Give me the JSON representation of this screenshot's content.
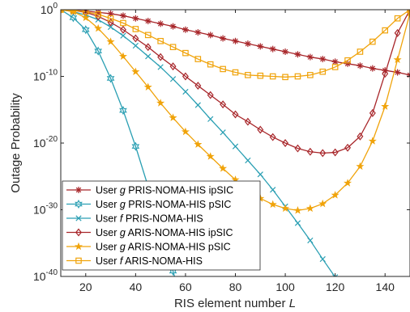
{
  "chart_data": {
    "type": "line",
    "title": "",
    "xlabel": "RIS element number",
    "xlabel_var": "L",
    "ylabel": "Outage Probability",
    "xlim": [
      10,
      150
    ],
    "ylim_exponent": [
      -40,
      0
    ],
    "yscale": "log",
    "x_ticks": [
      "20",
      "40",
      "60",
      "80",
      "100",
      "120",
      "140"
    ],
    "y_ticks": [
      {
        "base": "10",
        "exp": "0",
        "value": 0
      },
      {
        "base": "10",
        "exp": "-10",
        "value": -10
      },
      {
        "base": "10",
        "exp": "-20",
        "value": -20
      },
      {
        "base": "10",
        "exp": "-30",
        "value": -30
      },
      {
        "base": "10",
        "exp": "-40",
        "value": -40
      }
    ],
    "grid": false,
    "legend_position": "bottom-left",
    "series": [
      {
        "name": "User g PRIS-NOMA-HIS ipSIC",
        "label_parts": [
          "User ",
          "g",
          " PRIS-NOMA-HIS ipSIC"
        ],
        "color": "#a8262a",
        "marker": "asterisk",
        "x": [
          10,
          15,
          20,
          25,
          30,
          35,
          40,
          45,
          50,
          55,
          60,
          65,
          70,
          75,
          80,
          85,
          90,
          95,
          100,
          105,
          110,
          115,
          120,
          125,
          130,
          135,
          140,
          145,
          150
        ],
        "log10_y": [
          0,
          -0.1,
          -0.2,
          -0.4,
          -0.6,
          -0.9,
          -1.3,
          -1.7,
          -2.1,
          -2.5,
          -3.0,
          -3.4,
          -3.8,
          -4.3,
          -4.7,
          -5.1,
          -5.5,
          -5.9,
          -6.3,
          -6.7,
          -7.1,
          -7.4,
          -7.8,
          -8.1,
          -8.4,
          -8.8,
          -9.1,
          -9.4,
          -9.8
        ]
      },
      {
        "name": "User g PRIS-NOMA-HIS pSIC",
        "label_parts": [
          "User ",
          "g",
          " PRIS-NOMA-HIS pSIC"
        ],
        "color": "#2a9fb3",
        "marker": "hexagram",
        "x": [
          10,
          15,
          20,
          25,
          30,
          35,
          40,
          45,
          50,
          55,
          60
        ],
        "log10_y": [
          0,
          -1.2,
          -3.0,
          -6.2,
          -10.3,
          -15.1,
          -20.5,
          -26.5,
          -32.8,
          -39.2,
          -46
        ]
      },
      {
        "name": "User f PRIS-NOMA-HIS",
        "label_parts": [
          "User ",
          "f",
          " PRIS-NOMA-HIS"
        ],
        "color": "#2a9fb3",
        "marker": "x",
        "x": [
          10,
          15,
          20,
          25,
          30,
          35,
          40,
          45,
          50,
          55,
          60,
          65,
          70,
          75,
          80,
          85,
          90,
          95,
          100,
          105,
          110,
          115,
          120,
          125
        ],
        "log10_y": [
          0,
          -0.3,
          -0.8,
          -1.5,
          -2.6,
          -3.9,
          -5.4,
          -7.0,
          -8.6,
          -10.4,
          -12.3,
          -14.3,
          -16.4,
          -18.4,
          -20.5,
          -22.6,
          -24.7,
          -27.0,
          -29.5,
          -32.0,
          -34.6,
          -37.4,
          -40.1,
          -43
        ]
      },
      {
        "name": "User g ARIS-NOMA-HIS ipSIC",
        "label_parts": [
          "User ",
          "g",
          " ARIS-NOMA-HIS ipSIC"
        ],
        "color": "#a8262a",
        "marker": "diamond",
        "x": [
          10,
          15,
          20,
          25,
          30,
          35,
          40,
          45,
          50,
          55,
          60,
          65,
          70,
          75,
          80,
          85,
          90,
          95,
          100,
          105,
          110,
          115,
          120,
          125,
          130,
          135,
          140,
          145,
          150
        ],
        "log10_y": [
          0,
          -0.1,
          -0.4,
          -1.0,
          -1.9,
          -3.0,
          -4.3,
          -5.6,
          -7.1,
          -8.5,
          -10.0,
          -11.4,
          -12.8,
          -14.2,
          -15.7,
          -16.8,
          -18.0,
          -19.1,
          -20.0,
          -20.8,
          -21.3,
          -21.5,
          -21.4,
          -20.7,
          -19.0,
          -15.5,
          -9.6,
          -3.5,
          0
        ]
      },
      {
        "name": "User g ARIS-NOMA-HIS pSIC",
        "label_parts": [
          "User ",
          "g",
          " ARIS-NOMA-HIS pSIC"
        ],
        "color": "#f0a30a",
        "marker": "star",
        "x": [
          10,
          15,
          20,
          25,
          30,
          35,
          40,
          45,
          50,
          55,
          60,
          65,
          70,
          75,
          80,
          85,
          90,
          95,
          100,
          105,
          110,
          115,
          120,
          125,
          130,
          135,
          140,
          145,
          150
        ],
        "log10_y": [
          0,
          -0.3,
          -1.2,
          -2.8,
          -4.8,
          -7.0,
          -9.3,
          -11.6,
          -14.0,
          -16.2,
          -18.3,
          -20.2,
          -22.0,
          -23.8,
          -25.5,
          -27.0,
          -28.3,
          -29.2,
          -29.8,
          -30.1,
          -29.8,
          -29.1,
          -27.8,
          -26.0,
          -23.5,
          -19.7,
          -14.5,
          -7.5,
          -0.5
        ]
      },
      {
        "name": "User f ARIS-NOMA-HIS",
        "label_parts": [
          "User ",
          "f",
          " ARIS-NOMA-HIS"
        ],
        "color": "#f0a30a",
        "marker": "square",
        "x": [
          10,
          15,
          20,
          25,
          30,
          35,
          40,
          45,
          50,
          55,
          60,
          65,
          70,
          75,
          80,
          85,
          90,
          95,
          100,
          105,
          110,
          115,
          120,
          125,
          130,
          135,
          140,
          145,
          150
        ],
        "log10_y": [
          0,
          -0.1,
          -0.3,
          -0.7,
          -1.3,
          -2.0,
          -2.9,
          -3.8,
          -4.7,
          -5.6,
          -6.5,
          -7.4,
          -8.2,
          -8.9,
          -9.4,
          -9.8,
          -9.9,
          -10.0,
          -10.1,
          -10.0,
          -9.8,
          -9.3,
          -8.6,
          -7.6,
          -6.3,
          -4.8,
          -3.1,
          -1.3,
          0
        ]
      }
    ]
  }
}
